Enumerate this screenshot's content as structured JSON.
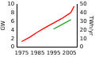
{
  "chart_data": {
    "type": "line",
    "x": [
      1975,
      1980,
      1985,
      1990,
      1995,
      2000,
      2005,
      2006,
      2008
    ],
    "series": [
      {
        "name": "GW",
        "color": "#ff0000",
        "values": [
          1.3,
          2.3,
          3.5,
          4.6,
          5.6,
          6.6,
          7.8,
          8.1,
          9.5
        ]
      },
      {
        "name": "TWh/yr",
        "color": "#22aa22",
        "axis": "y2",
        "values": [
          null,
          null,
          null,
          null,
          21,
          26,
          31,
          32,
          null
        ]
      }
    ],
    "y_label": "GW",
    "y2_label": "TWh/yr",
    "xlim": [
      1972,
      2010
    ],
    "xticks": [
      1975,
      1985,
      1995,
      2005
    ],
    "ylim": [
      0,
      10
    ],
    "yticks": [
      0,
      2,
      4,
      6,
      8,
      10
    ],
    "y2lim": [
      0,
      50
    ],
    "y2ticks": [
      0,
      10,
      20,
      30,
      40,
      50
    ],
    "grid": false
  }
}
